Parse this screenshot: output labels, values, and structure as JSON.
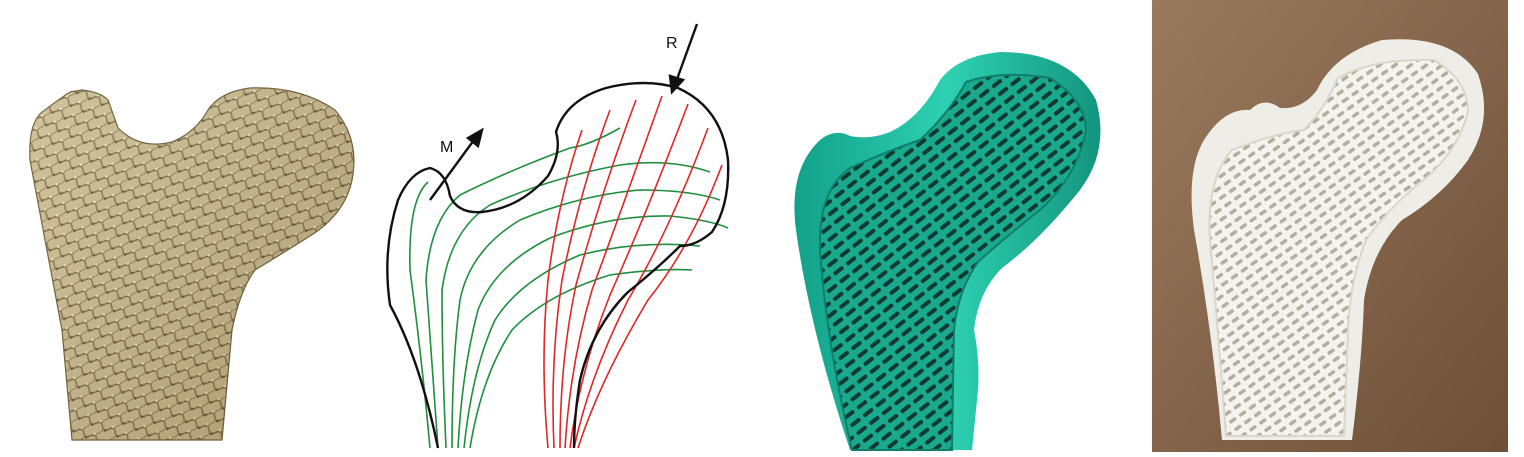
{
  "panels": [
    {
      "name": "bone-section-photo"
    },
    {
      "name": "trajectory-diagram",
      "labels": {
        "m": "M",
        "r": "R"
      },
      "colors": {
        "compression": "#e02727",
        "tension": "#1f8f3f",
        "outline": "#111111"
      }
    },
    {
      "name": "teal-3d-render",
      "colors": {
        "body": "#1fb59a",
        "dark": "#0c3b33"
      }
    },
    {
      "name": "white-3d-print-photo",
      "colors": {
        "background": "#8a6a50",
        "print": "#f2f1ec"
      }
    }
  ]
}
